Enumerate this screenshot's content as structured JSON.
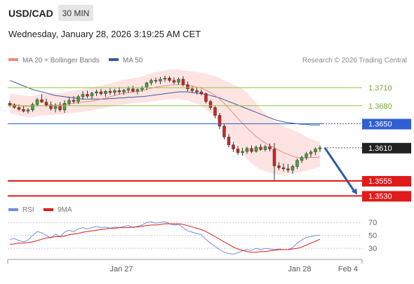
{
  "header": {
    "symbol": "USD/CAD",
    "timeframe": "30 MIN",
    "datetime": "Wednesday, January 28, 2026 3:19:25 AM CET"
  },
  "legend": {
    "ma20_label": "MA 20 + Bollinger Bands",
    "ma50_label": "MA 50",
    "credit": "Research © 2026 Trading Central",
    "rsi_label": "RSI",
    "rsi_ma_label": "9MA"
  },
  "colors": {
    "candle_up": "#41a63a",
    "candle_down": "#d42222",
    "ma20": "#e88c7e",
    "ma50": "#3c5a9a",
    "bollinger_fill": "#fde4e2",
    "green_level": "#8cc63f",
    "blue_level": "#2f5fd3",
    "red_level": "#e01b1b",
    "current_price": "#222222",
    "arrow": "#2b5aa6",
    "rsi": "#6f8fdc",
    "rsi_ma": "#e01b1b"
  },
  "chart_data": {
    "type": "candlestick",
    "ylim": [
      1.352,
      1.3745
    ],
    "x_axis_ticks": [
      "Jan 27",
      "Jan 28",
      "Feb 4"
    ],
    "levels": [
      {
        "value": "1.3710",
        "price": 1.371,
        "kind": "resistance-2",
        "color": "#8cc63f"
      },
      {
        "value": "1.3680",
        "price": 1.368,
        "kind": "resistance-1",
        "color": "#8cc63f"
      },
      {
        "value": "1.3650",
        "price": 1.365,
        "kind": "pivot",
        "color": "#2f5fd3"
      },
      {
        "value": "1.3610",
        "price": 1.361,
        "kind": "last-price",
        "color": "#222222"
      },
      {
        "value": "1.3555",
        "price": 1.3555,
        "kind": "support-1",
        "color": "#e01b1b"
      },
      {
        "value": "1.3530",
        "price": 1.353,
        "kind": "support-2",
        "color": "#e01b1b"
      }
    ],
    "forecast_target": 1.353,
    "candles": [
      [
        1.3684,
        1.3688,
        1.3678,
        1.3681
      ],
      [
        1.3681,
        1.3684,
        1.3675,
        1.3677
      ],
      [
        1.3677,
        1.3682,
        1.3671,
        1.3674
      ],
      [
        1.3674,
        1.3679,
        1.3669,
        1.3671
      ],
      [
        1.3671,
        1.3676,
        1.3667,
        1.3673
      ],
      [
        1.3673,
        1.3685,
        1.367,
        1.3682
      ],
      [
        1.3682,
        1.3693,
        1.3679,
        1.369
      ],
      [
        1.369,
        1.3699,
        1.3685,
        1.3686
      ],
      [
        1.3686,
        1.3692,
        1.3678,
        1.3681
      ],
      [
        1.3681,
        1.3687,
        1.3672,
        1.3675
      ],
      [
        1.3675,
        1.3684,
        1.3669,
        1.3679
      ],
      [
        1.3679,
        1.3686,
        1.367,
        1.3673
      ],
      [
        1.3673,
        1.3689,
        1.3668,
        1.3684
      ],
      [
        1.3684,
        1.3694,
        1.368,
        1.3689
      ],
      [
        1.3689,
        1.3696,
        1.3684,
        1.3687
      ],
      [
        1.3687,
        1.3698,
        1.3683,
        1.3695
      ],
      [
        1.3695,
        1.3704,
        1.369,
        1.3699
      ],
      [
        1.3699,
        1.3705,
        1.3693,
        1.3696
      ],
      [
        1.3696,
        1.3703,
        1.3691,
        1.3701
      ],
      [
        1.3701,
        1.3707,
        1.3696,
        1.3703
      ],
      [
        1.3703,
        1.3708,
        1.3697,
        1.37
      ],
      [
        1.37,
        1.3706,
        1.3695,
        1.3704
      ],
      [
        1.3704,
        1.3709,
        1.3698,
        1.3702
      ],
      [
        1.3702,
        1.3708,
        1.3697,
        1.3705
      ],
      [
        1.3705,
        1.3711,
        1.3699,
        1.3703
      ],
      [
        1.3703,
        1.3708,
        1.3698,
        1.3706
      ],
      [
        1.3706,
        1.3712,
        1.3701,
        1.3708
      ],
      [
        1.3708,
        1.3713,
        1.3702,
        1.3704
      ],
      [
        1.3704,
        1.3709,
        1.3699,
        1.3707
      ],
      [
        1.3707,
        1.3713,
        1.3703,
        1.371
      ],
      [
        1.371,
        1.372,
        1.3706,
        1.3718
      ],
      [
        1.3718,
        1.3725,
        1.3714,
        1.3722
      ],
      [
        1.3722,
        1.3727,
        1.3717,
        1.3721
      ],
      [
        1.3721,
        1.3728,
        1.3716,
        1.3724
      ],
      [
        1.3724,
        1.373,
        1.372,
        1.3726
      ],
      [
        1.3726,
        1.3729,
        1.3719,
        1.3722
      ],
      [
        1.3722,
        1.3727,
        1.3716,
        1.3719
      ],
      [
        1.3719,
        1.3727,
        1.3715,
        1.3724
      ],
      [
        1.3724,
        1.3729,
        1.3712,
        1.3715
      ],
      [
        1.3715,
        1.372,
        1.3704,
        1.3708
      ],
      [
        1.3708,
        1.3712,
        1.3701,
        1.3705
      ],
      [
        1.3705,
        1.371,
        1.3699,
        1.3703
      ],
      [
        1.3703,
        1.3707,
        1.3697,
        1.37
      ],
      [
        1.37,
        1.3702,
        1.3684,
        1.3687
      ],
      [
        1.3687,
        1.369,
        1.3673,
        1.3677
      ],
      [
        1.3677,
        1.368,
        1.3659,
        1.3664
      ],
      [
        1.3664,
        1.3668,
        1.3641,
        1.3646
      ],
      [
        1.3646,
        1.365,
        1.3624,
        1.3628
      ],
      [
        1.3628,
        1.3633,
        1.3611,
        1.3615
      ],
      [
        1.3615,
        1.362,
        1.3603,
        1.3608
      ],
      [
        1.3608,
        1.3613,
        1.3598,
        1.3602
      ],
      [
        1.3602,
        1.361,
        1.3597,
        1.3604
      ],
      [
        1.3604,
        1.3612,
        1.36,
        1.3609
      ],
      [
        1.3609,
        1.3614,
        1.3601,
        1.3604
      ],
      [
        1.3604,
        1.3614,
        1.3602,
        1.3611
      ],
      [
        1.3611,
        1.3616,
        1.3605,
        1.3607
      ],
      [
        1.3607,
        1.3615,
        1.3604,
        1.3612
      ],
      [
        1.3612,
        1.3617,
        1.3604,
        1.3608
      ],
      [
        1.3608,
        1.3618,
        1.3555,
        1.358
      ],
      [
        1.358,
        1.3586,
        1.3573,
        1.3577
      ],
      [
        1.3577,
        1.3584,
        1.3571,
        1.3575
      ],
      [
        1.3575,
        1.3583,
        1.3569,
        1.3573
      ],
      [
        1.3573,
        1.3582,
        1.3567,
        1.3579
      ],
      [
        1.3579,
        1.3592,
        1.3575,
        1.3589
      ],
      [
        1.3589,
        1.3597,
        1.3585,
        1.3594
      ],
      [
        1.3594,
        1.3603,
        1.359,
        1.36
      ],
      [
        1.36,
        1.3606,
        1.3594,
        1.3603
      ],
      [
        1.3603,
        1.3611,
        1.3598,
        1.3608
      ],
      [
        1.3608,
        1.3614,
        1.3603,
        1.361
      ]
    ],
    "ma20": [
      1.3683,
      1.3682,
      1.368,
      1.3679,
      1.3679,
      1.3679,
      1.368,
      1.368,
      1.368,
      1.3681,
      1.3681,
      1.3681,
      1.3682,
      1.3683,
      1.3684,
      1.3685,
      1.3686,
      1.3687,
      1.3688,
      1.3689,
      1.3691,
      1.3693,
      1.3695,
      1.3697,
      1.3699,
      1.3701,
      1.3702,
      1.3703,
      1.3704,
      1.3705,
      1.3707,
      1.3709,
      1.3711,
      1.3712,
      1.3713,
      1.3714,
      1.3715,
      1.3715,
      1.3715,
      1.3714,
      1.3713,
      1.3711,
      1.3709,
      1.3706,
      1.3702,
      1.3697,
      1.3691,
      1.3684,
      1.3676,
      1.3667,
      1.3659,
      1.3651,
      1.3643,
      1.3636,
      1.3629,
      1.3623,
      1.3618,
      1.3614,
      1.361,
      1.3606,
      1.3602,
      1.3599,
      1.3596,
      1.3594,
      1.3593,
      1.3593,
      1.3594,
      1.3594,
      1.3595
    ],
    "ma50": [
      1.3722,
      1.3719,
      1.3716,
      1.3713,
      1.371,
      1.3707,
      1.3705,
      1.3703,
      1.3701,
      1.3699,
      1.3697,
      1.3696,
      1.3695,
      1.3694,
      1.3693,
      1.3692,
      1.3691,
      1.3691,
      1.3691,
      1.3691,
      1.3691,
      1.3691,
      1.3692,
      1.3692,
      1.3693,
      1.3693,
      1.3694,
      1.3694,
      1.3695,
      1.3695,
      1.3696,
      1.3697,
      1.3698,
      1.3699,
      1.37,
      1.3701,
      1.3702,
      1.3703,
      1.3703,
      1.3703,
      1.3702,
      1.3701,
      1.37,
      1.3699,
      1.3697,
      1.3695,
      1.3693,
      1.369,
      1.3687,
      1.3684,
      1.3681,
      1.3678,
      1.3675,
      1.3672,
      1.3669,
      1.3666,
      1.3663,
      1.366,
      1.3657,
      1.3655,
      1.3653,
      1.3652,
      1.3651,
      1.365,
      1.3649,
      1.3649,
      1.3648,
      1.3648,
      1.3648
    ],
    "bollinger_upper": [
      1.37,
      1.3699,
      1.3698,
      1.3697,
      1.3696,
      1.3696,
      1.3698,
      1.37,
      1.37,
      1.3701,
      1.3701,
      1.3701,
      1.3702,
      1.3704,
      1.3705,
      1.3706,
      1.3708,
      1.3709,
      1.371,
      1.3712,
      1.3713,
      1.3715,
      1.3717,
      1.3719,
      1.3721,
      1.3723,
      1.3724,
      1.3726,
      1.3727,
      1.3729,
      1.3731,
      1.3734,
      1.3736,
      1.3737,
      1.3739,
      1.374,
      1.374,
      1.374,
      1.3739,
      1.3738,
      1.3737,
      1.3736,
      1.3735,
      1.3733,
      1.3731,
      1.3729,
      1.3726,
      1.3722,
      1.3719,
      1.3715,
      1.3712,
      1.3708,
      1.3702,
      1.3694,
      1.3685,
      1.3676,
      1.3667,
      1.3659,
      1.3654,
      1.365,
      1.3646,
      1.3643,
      1.364,
      1.3637,
      1.3633,
      1.3628,
      1.3625,
      1.3622,
      1.362
    ],
    "bollinger_lower": [
      1.3668,
      1.3666,
      1.3664,
      1.3662,
      1.3661,
      1.3661,
      1.3663,
      1.3664,
      1.3664,
      1.3665,
      1.3665,
      1.3665,
      1.3666,
      1.3667,
      1.3668,
      1.3669,
      1.367,
      1.3671,
      1.3672,
      1.3674,
      1.3675,
      1.3677,
      1.3678,
      1.368,
      1.3681,
      1.3682,
      1.3683,
      1.3684,
      1.3685,
      1.3685,
      1.3686,
      1.3687,
      1.3688,
      1.3689,
      1.369,
      1.3691,
      1.3691,
      1.3691,
      1.369,
      1.3689,
      1.3686,
      1.3683,
      1.3679,
      1.3674,
      1.3668,
      1.3661,
      1.3652,
      1.3642,
      1.3631,
      1.362,
      1.361,
      1.36,
      1.3591,
      1.3584,
      1.3578,
      1.3574,
      1.3571,
      1.3569,
      1.3567,
      1.3565,
      1.3565,
      1.3566,
      1.3567,
      1.3568,
      1.357,
      1.3572,
      1.3574,
      1.3576,
      1.3578
    ],
    "rsi": {
      "ylim": [
        15,
        80
      ],
      "levels": [
        "70",
        "50",
        "30"
      ],
      "rsi_values": [
        44,
        45,
        42,
        40,
        43,
        50,
        56,
        54,
        50,
        46,
        52,
        48,
        55,
        58,
        56,
        60,
        62,
        60,
        62,
        64,
        62,
        63,
        61,
        63,
        62,
        64,
        65,
        62,
        64,
        66,
        70,
        71,
        69,
        70,
        71,
        68,
        66,
        67,
        62,
        57,
        55,
        53,
        51,
        44,
        38,
        33,
        28,
        24,
        22,
        21,
        23,
        26,
        28,
        27,
        30,
        28,
        30,
        29,
        28,
        29,
        28,
        28,
        31,
        38,
        43,
        47,
        48,
        50,
        50
      ],
      "ma9_values": [
        36,
        37,
        38,
        38,
        39,
        40,
        42,
        44,
        46,
        47,
        48,
        48,
        49,
        51,
        52,
        53,
        55,
        56,
        57,
        58,
        59,
        60,
        61,
        61,
        62,
        62,
        62,
        63,
        63,
        64,
        65,
        66,
        66,
        67,
        68,
        68,
        68,
        68,
        67,
        65,
        63,
        61,
        59,
        56,
        52,
        48,
        44,
        40,
        36,
        32,
        29,
        27,
        25,
        24,
        24,
        25,
        25,
        26,
        27,
        28,
        28,
        28,
        29,
        30,
        32,
        35,
        38,
        41,
        44
      ]
    }
  }
}
